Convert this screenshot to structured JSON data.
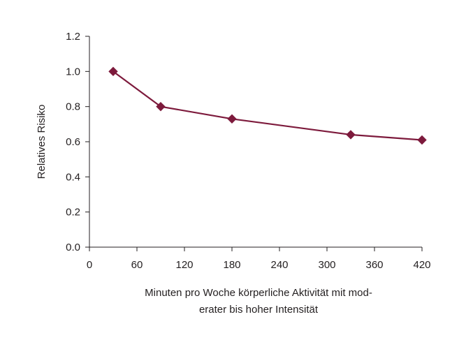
{
  "chart_data": {
    "type": "line",
    "title": "",
    "xlabel_lines": [
      "Minuten pro Woche körperliche Aktivität mit mod-",
      "erater bis hoher Intensität"
    ],
    "ylabel": "Relatives Risiko",
    "xlim": [
      0,
      420
    ],
    "ylim": [
      0.0,
      1.2
    ],
    "xticks": [
      "0",
      "60",
      "120",
      "180",
      "240",
      "300",
      "360",
      "420"
    ],
    "yticks": [
      "0.0",
      "0.2",
      "0.4",
      "0.6",
      "0.8",
      "1.0",
      "1.2"
    ],
    "grid": false,
    "legend": "none",
    "series": [
      {
        "color": "#7d1a3c",
        "marker": "diamond",
        "x": [
          30,
          90,
          180,
          330,
          420
        ],
        "y": [
          1.0,
          0.8,
          0.73,
          0.64,
          0.61
        ]
      }
    ]
  }
}
